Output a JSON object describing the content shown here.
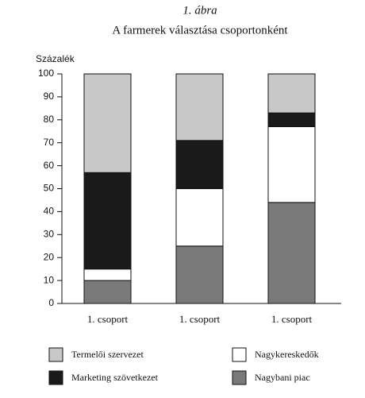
{
  "chart_data": {
    "type": "stacked_bar",
    "figure_label": "1. ábra",
    "title": "A farmerek választása csoportonként",
    "y_label": "Százalék",
    "categories": [
      "1. csoport",
      "1. csoport",
      "1. csoport"
    ],
    "series": [
      {
        "name": "Nagybani piac",
        "color": "#7a7a7a",
        "values": [
          10,
          25,
          44
        ]
      },
      {
        "name": "Nagykereskedők",
        "color": "#ffffff",
        "values": [
          5,
          25,
          33
        ]
      },
      {
        "name": "Marketing szövetkezet",
        "color": "#1a1a1a",
        "values": [
          42,
          21,
          6
        ]
      },
      {
        "name": "Termelői szervezet",
        "color": "#c8c8c8",
        "values": [
          43,
          29,
          17
        ]
      }
    ],
    "ylim": [
      0,
      100
    ],
    "yticks": [
      0,
      10,
      20,
      30,
      40,
      50,
      60,
      70,
      80,
      90,
      100
    ]
  }
}
